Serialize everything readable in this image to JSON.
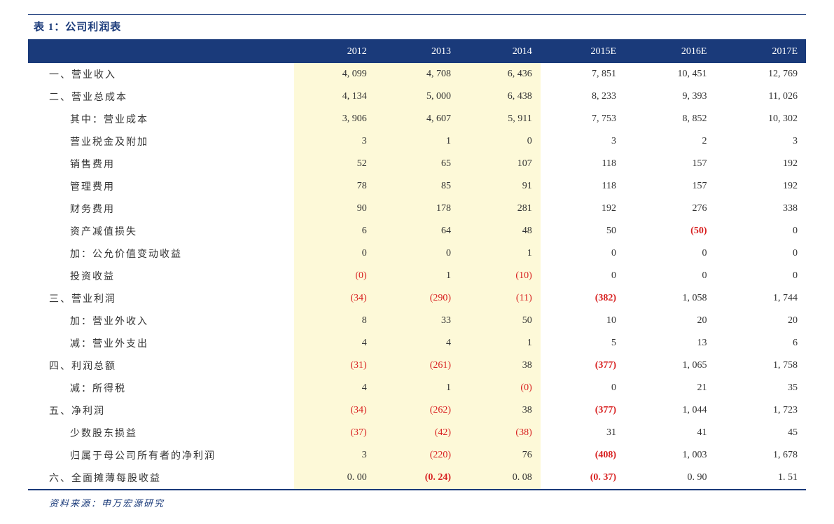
{
  "title": "表 1：公司利润表",
  "source": "资料来源：申万宏源研究",
  "colors": {
    "header_bg": "#1a3a7a",
    "header_text": "#ffffff",
    "highlight_bg": "#fdf9d8",
    "negative": "#d82020",
    "text": "#333333",
    "border": "#1a3a7a"
  },
  "columns": [
    "",
    "2012",
    "2013",
    "2014",
    "2015E",
    "2016E",
    "2017E"
  ],
  "rows": [
    {
      "label": "一、营业收入",
      "indent": 0,
      "cells": [
        {
          "v": "4, 099"
        },
        {
          "v": "4, 708"
        },
        {
          "v": "6, 436"
        },
        {
          "v": "7, 851"
        },
        {
          "v": "10, 451"
        },
        {
          "v": "12, 769"
        }
      ]
    },
    {
      "label": "二、营业总成本",
      "indent": 0,
      "cells": [
        {
          "v": "4, 134"
        },
        {
          "v": "5, 000"
        },
        {
          "v": "6, 438"
        },
        {
          "v": "8, 233"
        },
        {
          "v": "9, 393"
        },
        {
          "v": "11, 026"
        }
      ]
    },
    {
      "label": "其中：营业成本",
      "indent": 1,
      "cells": [
        {
          "v": "3, 906"
        },
        {
          "v": "4, 607"
        },
        {
          "v": "5, 911"
        },
        {
          "v": "7, 753"
        },
        {
          "v": "8, 852"
        },
        {
          "v": "10, 302"
        }
      ]
    },
    {
      "label": "营业税金及附加",
      "indent": 1,
      "cells": [
        {
          "v": "3"
        },
        {
          "v": "1"
        },
        {
          "v": "0"
        },
        {
          "v": "3"
        },
        {
          "v": "2"
        },
        {
          "v": "3"
        }
      ]
    },
    {
      "label": "销售费用",
      "indent": 1,
      "cells": [
        {
          "v": "52"
        },
        {
          "v": "65"
        },
        {
          "v": "107"
        },
        {
          "v": "118"
        },
        {
          "v": "157"
        },
        {
          "v": "192"
        }
      ]
    },
    {
      "label": "管理费用",
      "indent": 1,
      "cells": [
        {
          "v": "78"
        },
        {
          "v": "85"
        },
        {
          "v": "91"
        },
        {
          "v": "118"
        },
        {
          "v": "157"
        },
        {
          "v": "192"
        }
      ]
    },
    {
      "label": "财务费用",
      "indent": 1,
      "cells": [
        {
          "v": "90"
        },
        {
          "v": "178"
        },
        {
          "v": "281"
        },
        {
          "v": "192"
        },
        {
          "v": "276"
        },
        {
          "v": "338"
        }
      ]
    },
    {
      "label": "资产减值损失",
      "indent": 1,
      "cells": [
        {
          "v": "6"
        },
        {
          "v": "64"
        },
        {
          "v": "48"
        },
        {
          "v": "50"
        },
        {
          "v": "(50)",
          "neg": "bold"
        },
        {
          "v": "0"
        }
      ]
    },
    {
      "label": "加：公允价值变动收益",
      "indent": 1,
      "cells": [
        {
          "v": "0"
        },
        {
          "v": "0"
        },
        {
          "v": "1"
        },
        {
          "v": "0"
        },
        {
          "v": "0"
        },
        {
          "v": "0"
        }
      ]
    },
    {
      "label": "投资收益",
      "indent": 1,
      "cells": [
        {
          "v": "(0)",
          "neg": true
        },
        {
          "v": "1"
        },
        {
          "v": "(10)",
          "neg": true
        },
        {
          "v": "0"
        },
        {
          "v": "0"
        },
        {
          "v": "0"
        }
      ]
    },
    {
      "label": "三、营业利润",
      "indent": 0,
      "cells": [
        {
          "v": "(34)",
          "neg": true
        },
        {
          "v": "(290)",
          "neg": true
        },
        {
          "v": "(11)",
          "neg": true
        },
        {
          "v": "(382)",
          "neg": "bold"
        },
        {
          "v": "1, 058"
        },
        {
          "v": "1, 744"
        }
      ]
    },
    {
      "label": "加：营业外收入",
      "indent": 1,
      "cells": [
        {
          "v": "8"
        },
        {
          "v": "33"
        },
        {
          "v": "50"
        },
        {
          "v": "10"
        },
        {
          "v": "20"
        },
        {
          "v": "20"
        }
      ]
    },
    {
      "label": "减：营业外支出",
      "indent": 1,
      "cells": [
        {
          "v": "4"
        },
        {
          "v": "4"
        },
        {
          "v": "1"
        },
        {
          "v": "5"
        },
        {
          "v": "13"
        },
        {
          "v": "6"
        }
      ]
    },
    {
      "label": "四、利润总额",
      "indent": 0,
      "cells": [
        {
          "v": "(31)",
          "neg": true
        },
        {
          "v": "(261)",
          "neg": true
        },
        {
          "v": "38"
        },
        {
          "v": "(377)",
          "neg": "bold"
        },
        {
          "v": "1, 065"
        },
        {
          "v": "1, 758"
        }
      ]
    },
    {
      "label": "减：所得税",
      "indent": 1,
      "cells": [
        {
          "v": "4"
        },
        {
          "v": "1"
        },
        {
          "v": "(0)",
          "neg": true
        },
        {
          "v": "0"
        },
        {
          "v": "21"
        },
        {
          "v": "35"
        }
      ]
    },
    {
      "label": "五、净利润",
      "indent": 0,
      "cells": [
        {
          "v": "(34)",
          "neg": true
        },
        {
          "v": "(262)",
          "neg": true
        },
        {
          "v": "38"
        },
        {
          "v": "(377)",
          "neg": "bold"
        },
        {
          "v": "1, 044"
        },
        {
          "v": "1, 723"
        }
      ]
    },
    {
      "label": "少数股东损益",
      "indent": 1,
      "cells": [
        {
          "v": "(37)",
          "neg": true
        },
        {
          "v": "(42)",
          "neg": true
        },
        {
          "v": "(38)",
          "neg": true
        },
        {
          "v": "31"
        },
        {
          "v": "41"
        },
        {
          "v": "45"
        }
      ]
    },
    {
      "label": "归属于母公司所有者的净利润",
      "indent": 1,
      "cells": [
        {
          "v": "3"
        },
        {
          "v": "(220)",
          "neg": true
        },
        {
          "v": "76"
        },
        {
          "v": "(408)",
          "neg": "bold"
        },
        {
          "v": "1, 003"
        },
        {
          "v": "1, 678"
        }
      ]
    },
    {
      "label": "六、全面摊薄每股收益",
      "indent": 0,
      "cells": [
        {
          "v": "0. 00"
        },
        {
          "v": "(0. 24)",
          "neg": "bold"
        },
        {
          "v": "0. 08"
        },
        {
          "v": "(0. 37)",
          "neg": "bold"
        },
        {
          "v": "0. 90"
        },
        {
          "v": "1. 51"
        }
      ]
    }
  ],
  "highlight_cols": [
    1,
    2,
    3
  ]
}
